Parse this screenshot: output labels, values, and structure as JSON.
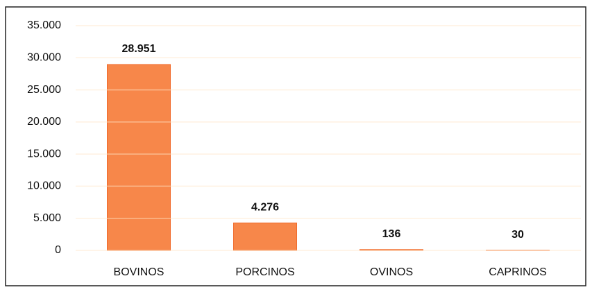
{
  "chart_data": {
    "type": "bar",
    "categories": [
      "BOVINOS",
      "PORCINOS",
      "OVINOS",
      "CAPRINOS"
    ],
    "values": [
      28951,
      4276,
      136,
      30
    ],
    "value_labels": [
      "28.951",
      "4.276",
      "136",
      "30"
    ],
    "color": "#f7874a",
    "ylim": [
      0,
      35000
    ],
    "yticks": [
      0,
      {
        "value": 5000,
        "label": "5.000"
      },
      {
        "value": 10000,
        "label": "10.000"
      },
      {
        "value": 15000,
        "label": "15.000"
      },
      {
        "value": 20000,
        "label": "20.000"
      },
      {
        "value": 25000,
        "label": "25.000"
      },
      {
        "value": 30000,
        "label": "30.000"
      },
      {
        "value": 35000,
        "label": "35.000"
      }
    ],
    "grid": true
  }
}
